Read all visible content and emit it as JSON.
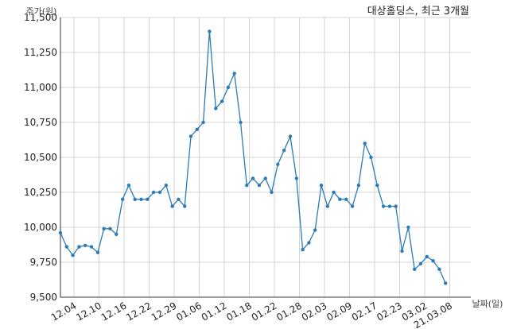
{
  "chart_data": {
    "type": "line",
    "title": "대상홀딩스, 최근 3개월",
    "ylabel": "주가(원)",
    "xlabel": "날짜(일)",
    "ylim": [
      9500,
      11500
    ],
    "yticks": [
      "9,500",
      "9,750",
      "10,000",
      "10,250",
      "10,500",
      "10,750",
      "11,000",
      "11,250",
      "11,500"
    ],
    "xtick_labels": [
      "12.04",
      "12.10",
      "12.16",
      "12.22",
      "12.29",
      "01.06",
      "01.12",
      "01.18",
      "01.22",
      "01.28",
      "02.03",
      "02.09",
      "02.17",
      "02.23",
      "03.02",
      "21.03.08"
    ],
    "grid": true,
    "color": "#2b7bb9",
    "values": [
      9960,
      9860,
      9800,
      9860,
      9870,
      9860,
      9820,
      9990,
      9990,
      9950,
      10200,
      10300,
      10200,
      10200,
      10200,
      10250,
      10250,
      10300,
      10150,
      10200,
      10150,
      10650,
      10700,
      10750,
      11400,
      10850,
      10900,
      11000,
      11100,
      10750,
      10300,
      10350,
      10300,
      10350,
      10250,
      10450,
      10550,
      10650,
      10350,
      9840,
      9890,
      9980,
      10300,
      10150,
      10250,
      10200,
      10200,
      10150,
      10300,
      10600,
      10500,
      10300,
      10150,
      10150,
      10150,
      9830,
      10000,
      9700,
      9740,
      9790,
      9760,
      9700,
      9600
    ]
  }
}
